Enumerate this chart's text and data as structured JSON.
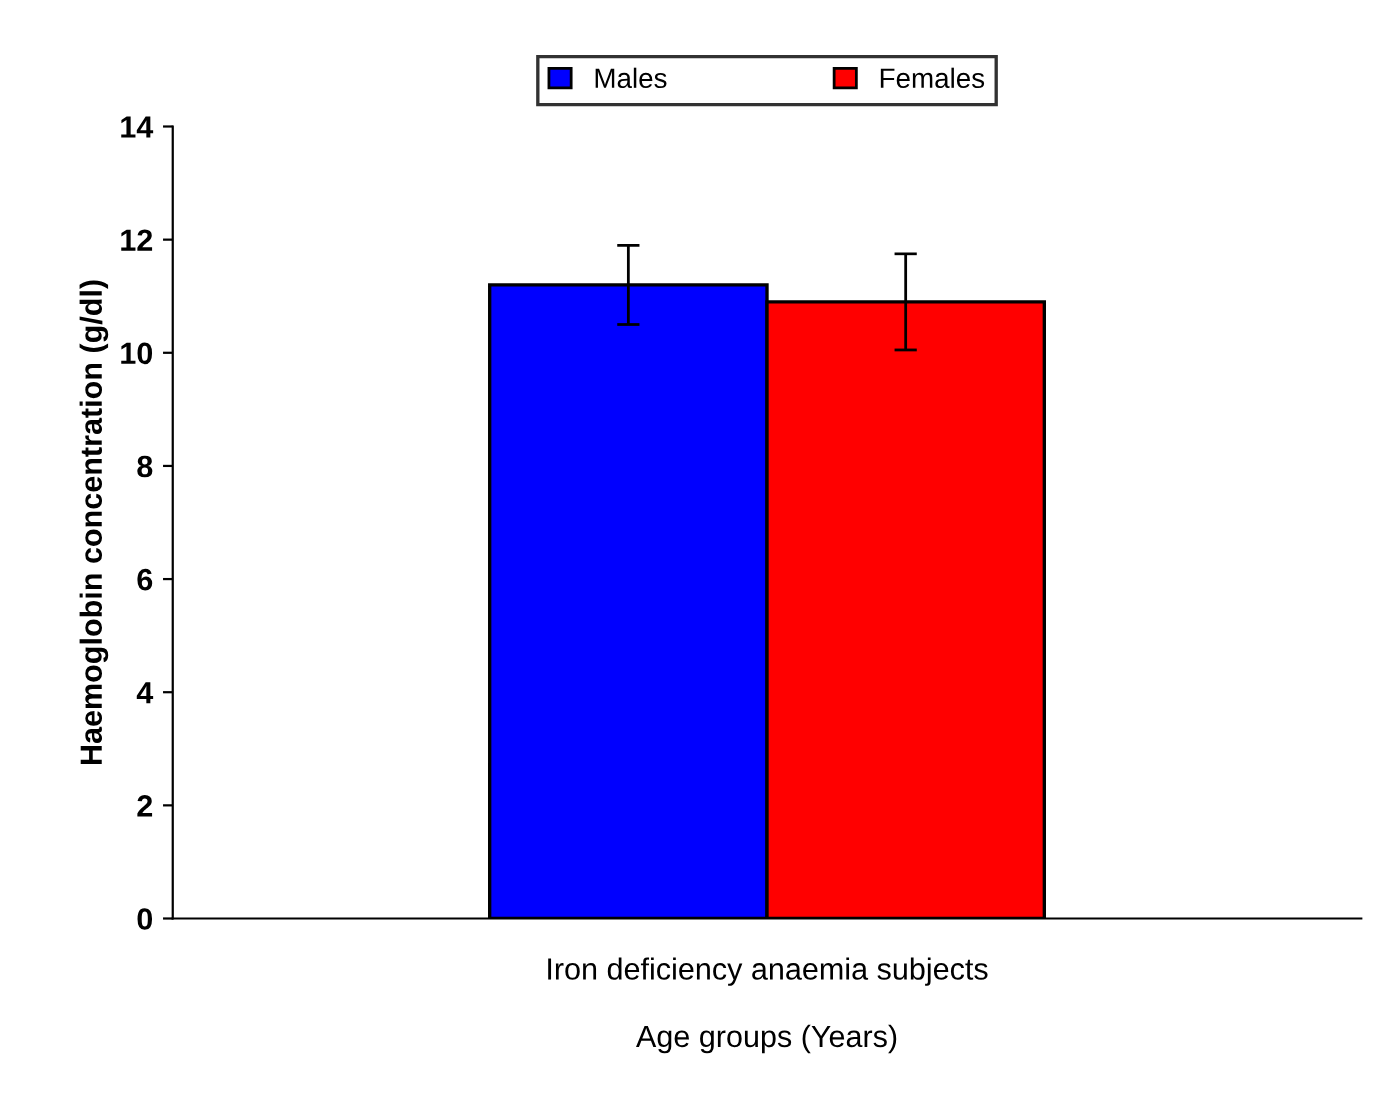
{
  "chart_data": {
    "type": "bar",
    "xlabel": "Age groups (Years)",
    "ylabel": "Haemoglobin concentration (g/dl)",
    "categories": [
      "Iron deficiency anaemia subjects"
    ],
    "series": [
      {
        "name": "Males",
        "color": "#0000ff",
        "values": [
          11.2
        ],
        "errors": [
          0.7
        ]
      },
      {
        "name": "Females",
        "color": "#ff0000",
        "values": [
          10.9
        ],
        "errors": [
          0.85
        ]
      }
    ],
    "ylim": [
      0,
      14
    ],
    "yticks": [
      0,
      2,
      4,
      6,
      8,
      10,
      12,
      14
    ],
    "grid": false,
    "legend": "top"
  }
}
